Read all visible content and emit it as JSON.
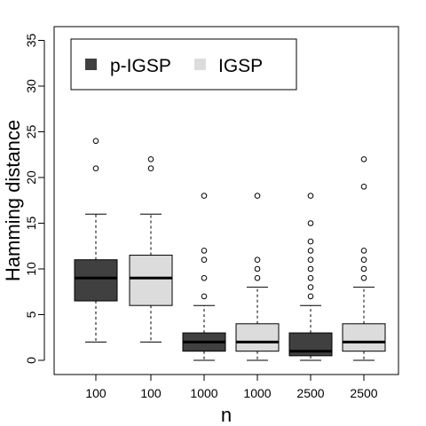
{
  "chart_data": {
    "type": "box",
    "xlabel": "n",
    "ylabel": "Hamming distance",
    "ylim": [
      0,
      35
    ],
    "yticks": [
      0,
      5,
      10,
      15,
      20,
      25,
      30,
      35
    ],
    "grid": false,
    "legend_position": "top-left",
    "legend": [
      {
        "label": "p-IGSP",
        "color": "#404040"
      },
      {
        "label": "IGSP",
        "color": "#dcdcdc"
      }
    ],
    "categories": [
      "100",
      "100",
      "1000",
      "1000",
      "2500",
      "2500"
    ],
    "boxes": [
      {
        "label": "100",
        "series": "p-IGSP",
        "color": "#404040",
        "whisker_low": 2,
        "q1": 6.5,
        "median": 9,
        "q3": 11,
        "whisker_high": 16,
        "outliers": [
          21,
          24
        ]
      },
      {
        "label": "100",
        "series": "IGSP",
        "color": "#dcdcdc",
        "whisker_low": 2,
        "q1": 6,
        "median": 9,
        "q3": 11.5,
        "whisker_high": 16,
        "outliers": [
          21,
          22
        ]
      },
      {
        "label": "1000",
        "series": "p-IGSP",
        "color": "#404040",
        "whisker_low": 0,
        "q1": 1,
        "median": 2,
        "q3": 3,
        "whisker_high": 6,
        "outliers": [
          7,
          9,
          11,
          12,
          18
        ]
      },
      {
        "label": "1000",
        "series": "IGSP",
        "color": "#dcdcdc",
        "whisker_low": 0,
        "q1": 1,
        "median": 2,
        "q3": 4,
        "whisker_high": 8,
        "outliers": [
          9,
          10,
          11,
          18
        ]
      },
      {
        "label": "2500",
        "series": "p-IGSP",
        "color": "#404040",
        "whisker_low": 0,
        "q1": 0.5,
        "median": 1,
        "q3": 3,
        "whisker_high": 6,
        "outliers": [
          7,
          8,
          9,
          10,
          11,
          12,
          13,
          15,
          18
        ]
      },
      {
        "label": "2500",
        "series": "IGSP",
        "color": "#dcdcdc",
        "whisker_low": 0,
        "q1": 1,
        "median": 2,
        "q3": 4,
        "whisker_high": 8,
        "outliers": [
          9,
          10,
          11,
          12,
          19,
          22
        ]
      }
    ]
  }
}
